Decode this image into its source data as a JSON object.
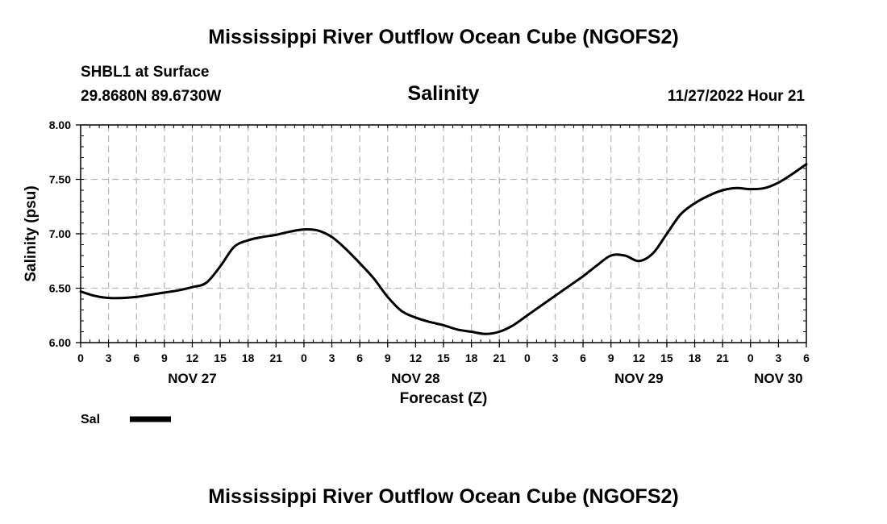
{
  "header": {
    "title": "Mississippi River Outflow Ocean Cube (NGOFS2)",
    "station": "SHBL1 at Surface",
    "coords": "29.8680N  89.6730W",
    "datetime": "11/27/2022 Hour 21"
  },
  "footer": {
    "title": "Mississippi River Outflow Ocean Cube (NGOFS2)"
  },
  "legend": {
    "label": "Sal"
  },
  "chart_data": {
    "type": "line",
    "title": "Salinity",
    "xlabel": "Forecast (Z)",
    "ylabel": "Salinity (psu)",
    "xlim": [
      0,
      78
    ],
    "ylim": [
      6.0,
      8.0
    ],
    "y_ticks": [
      "6.00",
      "6.50",
      "7.00",
      "7.50",
      "8.00"
    ],
    "y_tick_values": [
      6.0,
      6.5,
      7.0,
      7.5,
      8.0
    ],
    "x_tick_labels": [
      "0",
      "3",
      "6",
      "9",
      "12",
      "15",
      "18",
      "21",
      "0",
      "3",
      "6",
      "9",
      "12",
      "15",
      "18",
      "21",
      "0",
      "3",
      "6",
      "9",
      "12",
      "15",
      "18",
      "21",
      "0",
      "3",
      "6"
    ],
    "day_labels": [
      {
        "label": "NOV 27",
        "hour": 12
      },
      {
        "label": "NOV 28",
        "hour": 36
      },
      {
        "label": "NOV 29",
        "hour": 60
      },
      {
        "label": "NOV 30",
        "hour": 75
      }
    ],
    "grid": true,
    "series": [
      {
        "name": "Sal",
        "color": "#000000",
        "x": [
          0,
          1.5,
          3,
          4.5,
          6,
          7.5,
          9,
          10.5,
          12,
          13.5,
          15,
          16.5,
          18,
          19.5,
          21,
          22.5,
          24,
          25.5,
          27,
          28.5,
          30,
          31.5,
          33,
          34.5,
          36,
          37.5,
          39,
          40.5,
          42,
          43.5,
          45,
          46.5,
          48,
          49.5,
          51,
          52.5,
          54,
          55.5,
          57,
          58.5,
          60,
          61.5,
          63,
          64.5,
          66,
          67.5,
          69,
          70.5,
          72,
          73.5,
          75,
          76.5,
          78
        ],
        "values": [
          6.47,
          6.43,
          6.41,
          6.41,
          6.42,
          6.44,
          6.46,
          6.48,
          6.51,
          6.55,
          6.7,
          6.88,
          6.94,
          6.97,
          6.99,
          7.02,
          7.04,
          7.03,
          6.97,
          6.86,
          6.73,
          6.59,
          6.42,
          6.29,
          6.23,
          6.19,
          6.16,
          6.12,
          6.1,
          6.08,
          6.1,
          6.16,
          6.25,
          6.34,
          6.43,
          6.52,
          6.61,
          6.71,
          6.8,
          6.8,
          6.75,
          6.82,
          7.0,
          7.18,
          7.28,
          7.35,
          7.4,
          7.42,
          7.41,
          7.42,
          7.47,
          7.55,
          7.64
        ]
      }
    ]
  }
}
